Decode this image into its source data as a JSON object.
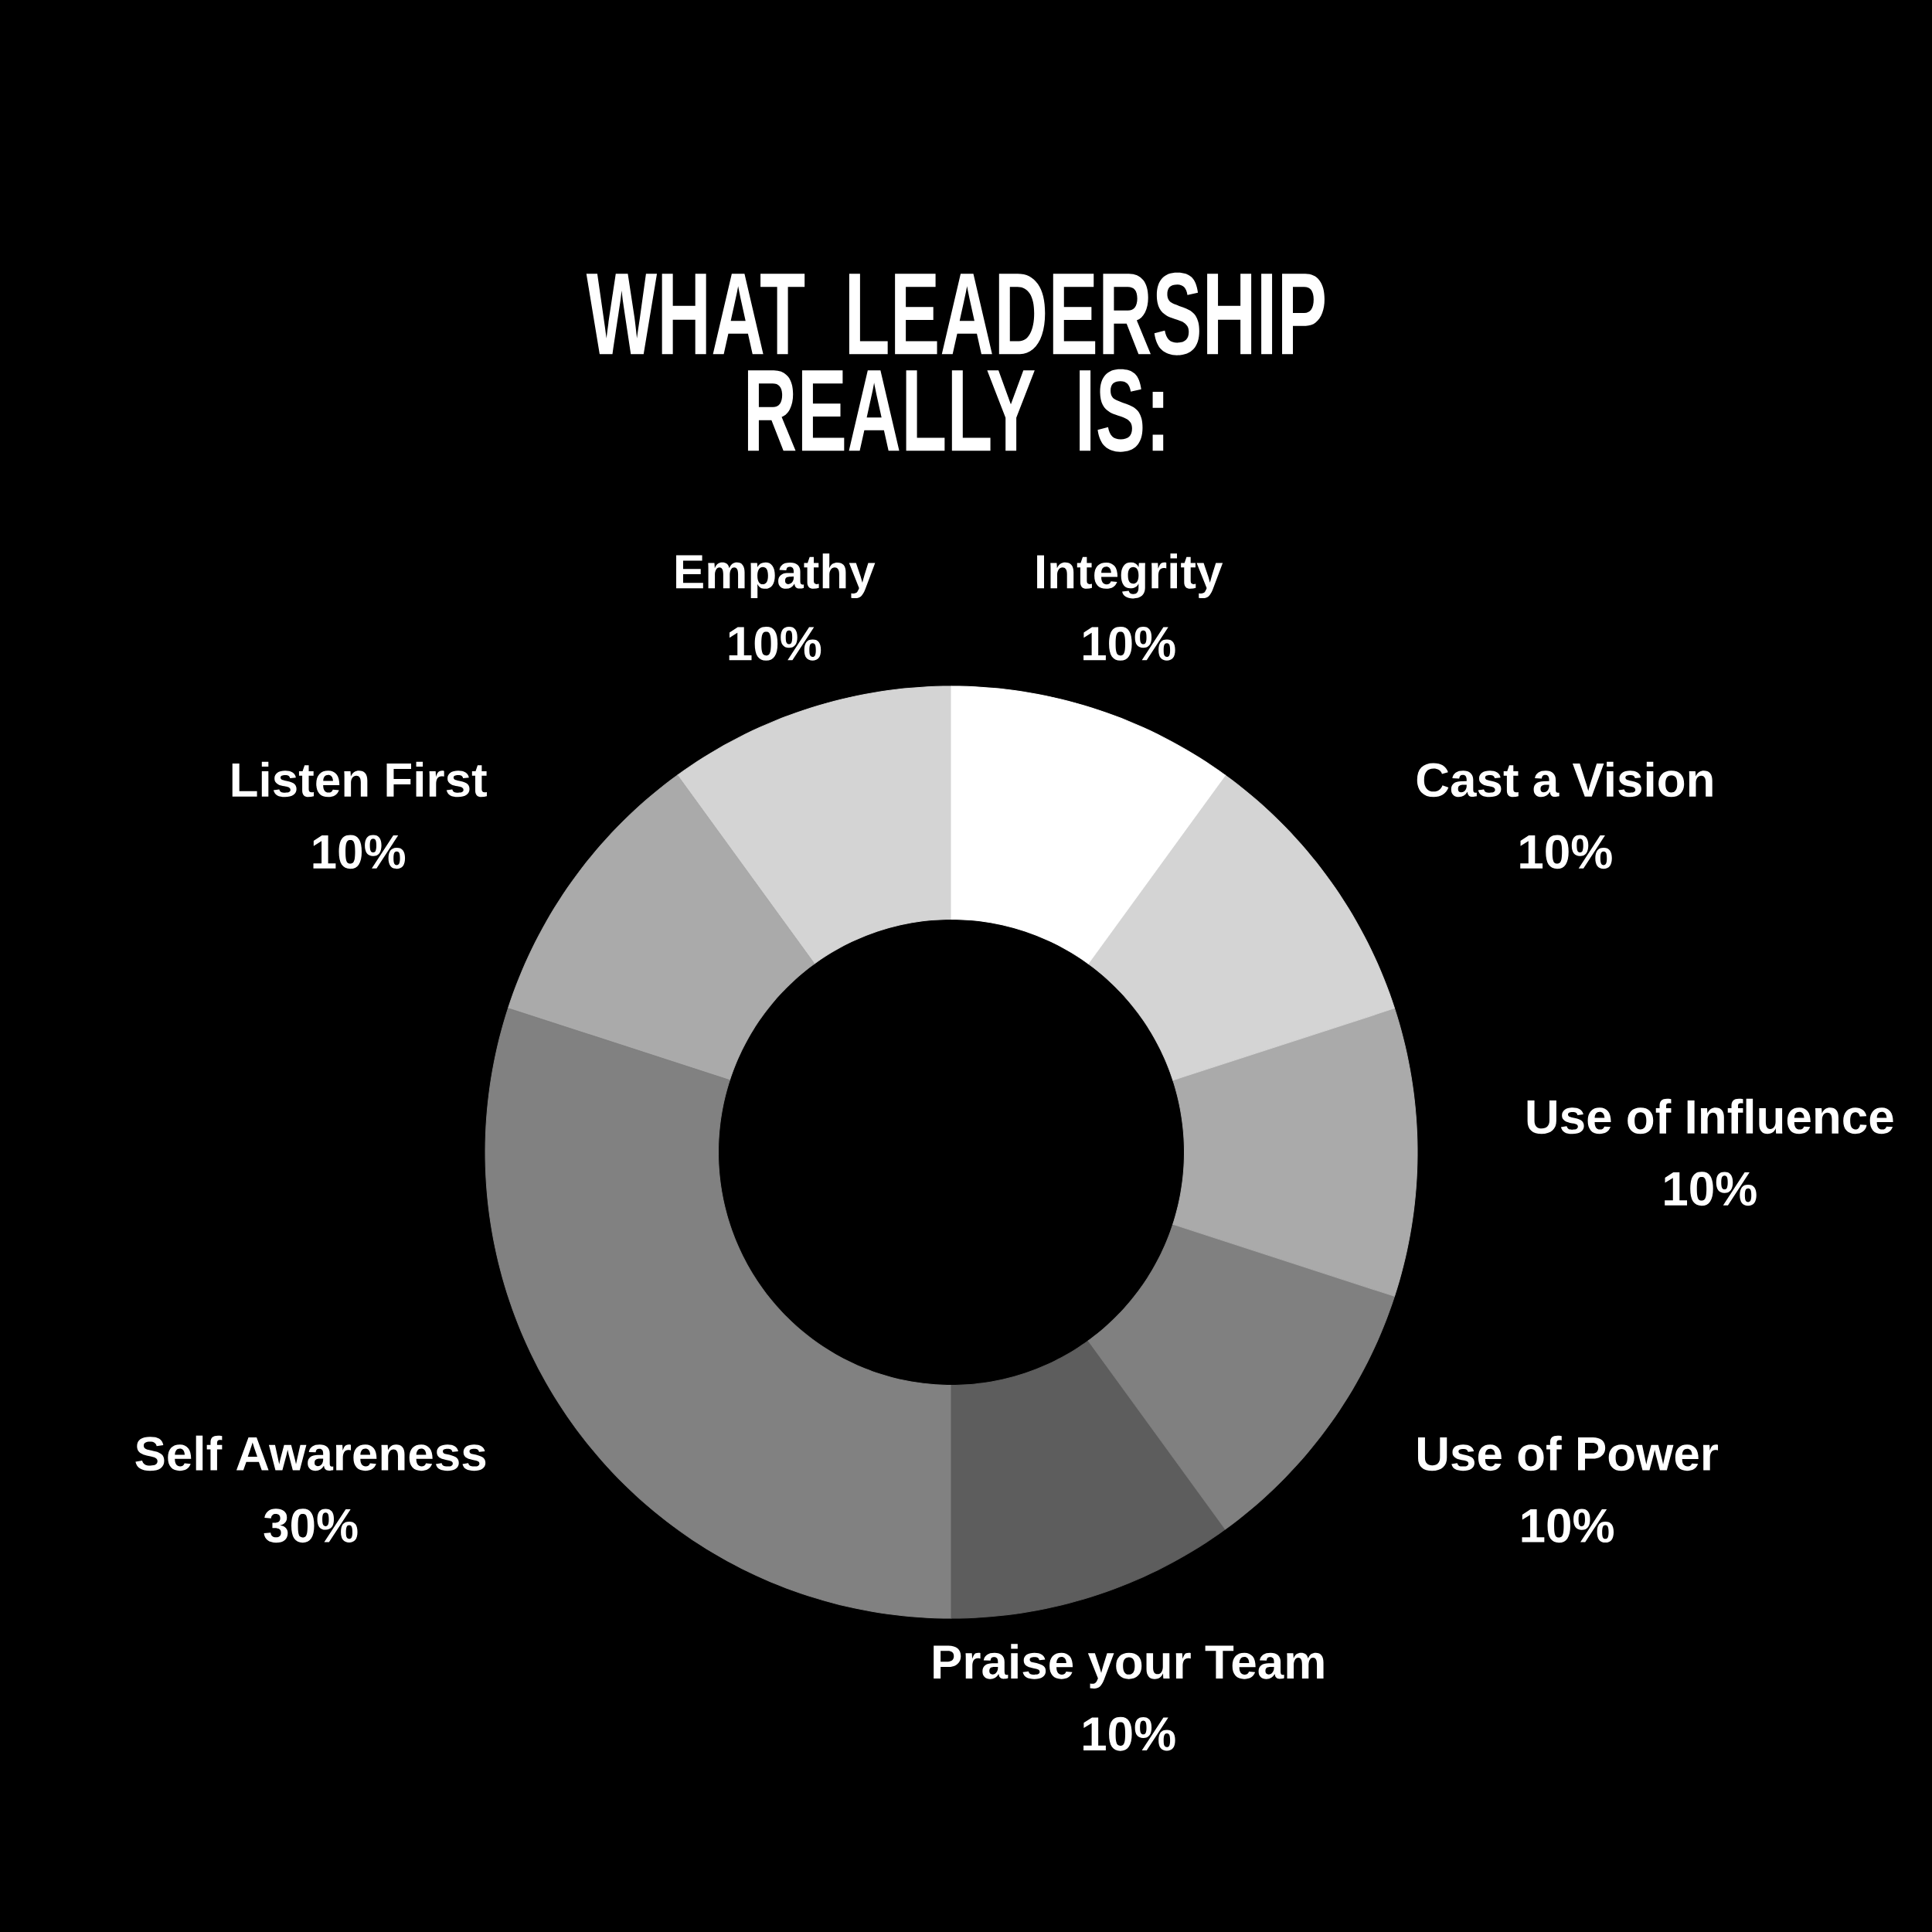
{
  "chart_data": {
    "type": "donut",
    "title": "WHAT LEADERSHIP REALLY IS:",
    "categories": [
      "Empathy",
      "Listen First",
      "Self Awareness",
      "Praise your Team",
      "Use of Power",
      "Use of Influence",
      "Cast a Vision",
      "Integrity"
    ],
    "values": [
      10,
      10,
      30,
      10,
      10,
      10,
      10,
      10
    ],
    "value_labels": [
      "10%",
      "10%",
      "30%",
      "10%",
      "10%",
      "10%",
      "10%",
      "10%"
    ],
    "colors": [
      "#d4d4d4",
      "#aaaaaa",
      "#818181",
      "#5d5d5d",
      "#808080",
      "#aaaaaa",
      "#d4d4d4",
      "#ffffff"
    ]
  }
}
